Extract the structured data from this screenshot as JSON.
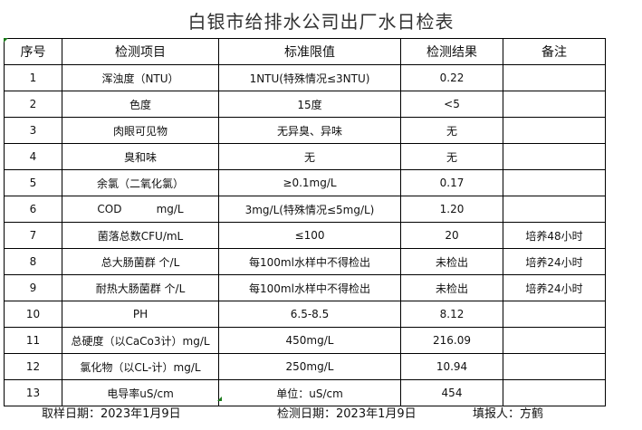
{
  "title": "白银市给排水公司出厂水日检表",
  "headers": [
    "序号",
    "检测项目",
    "标准限值",
    "检测结果",
    "备注"
  ],
  "rows": [
    [
      "1",
      "浑浊度（NTU）",
      "1NTU(特殊情况≤3NTU)",
      "0.22",
      ""
    ],
    [
      "2",
      "色度",
      "15度",
      "<5",
      ""
    ],
    [
      "3",
      "肉眼可见物",
      "无异臭、异味",
      "无",
      ""
    ],
    [
      "4",
      "臭和味",
      "无",
      "无",
      ""
    ],
    [
      "5",
      "余氯（二氧化氯）",
      "≥0.1mg/L",
      "0.17",
      ""
    ],
    [
      "6",
      "COD          mg/L",
      "3mg/L(特殊情况≤5mg/L)",
      "1.20",
      ""
    ],
    [
      "7",
      "菌落总数CFU/mL",
      "≤100",
      "20",
      "培养48小时"
    ],
    [
      "8",
      "总大肠菌群 个/L",
      "每100ml水样中不得检出",
      "未检出",
      "培养24小时"
    ],
    [
      "9",
      "耐热大肠菌群 个/L",
      "每100ml水样中不得检出",
      "未检出",
      "培养24小时"
    ],
    [
      "10",
      "PH",
      "6.5-8.5",
      "8.12",
      ""
    ],
    [
      "11",
      "总硬度（以CaCo3计）mg/L",
      "450mg/L",
      "216.09",
      ""
    ],
    [
      "12",
      "氯化物（以CL-计）mg/L",
      "250mg/L",
      "10.94",
      ""
    ],
    [
      "13",
      "电导率uS/cm",
      "单位：uS/cm",
      "454",
      ""
    ]
  ],
  "footer": {
    "sampling_date": "取样日期：2023年1月9日",
    "test_date": "检测日期：2023年1月9日",
    "reporter": "填报人：方鹤"
  }
}
